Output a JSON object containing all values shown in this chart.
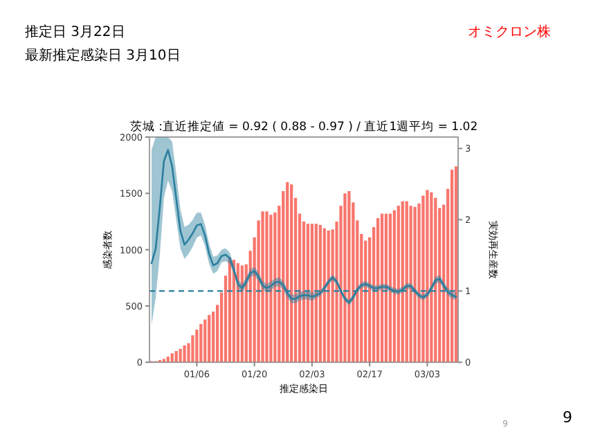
{
  "chart_data": {
    "type": "bar",
    "title": "茨城 :直近推定値 = 0.92 ( 0.88 - 0.97 ) / 直近1週平均 = 1.02",
    "xlabel": "推定感染日",
    "ylabel": "感染者数",
    "y2label": "実効再生産数",
    "categories": [
      null,
      null,
      null,
      null,
      null,
      null,
      null,
      null,
      null,
      null,
      null,
      "01/06",
      null,
      null,
      null,
      null,
      null,
      null,
      null,
      null,
      null,
      null,
      null,
      null,
      null,
      "01/20",
      null,
      null,
      null,
      null,
      null,
      null,
      null,
      null,
      null,
      null,
      null,
      null,
      null,
      "02/03",
      null,
      null,
      null,
      null,
      null,
      null,
      null,
      null,
      null,
      null,
      null,
      null,
      null,
      "02/17",
      null,
      null,
      null,
      null,
      null,
      null,
      null,
      null,
      null,
      null,
      null,
      null,
      null,
      "03/03",
      null,
      null,
      null,
      null,
      null,
      null,
      null
    ],
    "series": [
      {
        "color": "#f8766d",
        "values": [
          10,
          10,
          20,
          30,
          50,
          80,
          100,
          120,
          150,
          170,
          240,
          290,
          340,
          380,
          420,
          450,
          510,
          620,
          770,
          930,
          910,
          880,
          860,
          870,
          990,
          1110,
          1260,
          1340,
          1340,
          1310,
          1330,
          1390,
          1520,
          1600,
          1580,
          1460,
          1320,
          1250,
          1230,
          1230,
          1230,
          1220,
          1190,
          1170,
          1180,
          1250,
          1390,
          1500,
          1520,
          1420,
          1260,
          1140,
          1080,
          1110,
          1200,
          1280,
          1320,
          1320,
          1320,
          1350,
          1390,
          1430,
          1430,
          1390,
          1380,
          1410,
          1480,
          1530,
          1510,
          1460,
          1370,
          1400,
          1540,
          1710,
          1740
        ]
      },
      {
        "type": "line",
        "axis": "y2",
        "color": "#2a7f9e",
        "values": [
          1.39,
          1.59,
          2.17,
          2.82,
          2.98,
          2.75,
          2.3,
          1.85,
          1.65,
          1.72,
          1.81,
          1.92,
          1.94,
          1.78,
          1.52,
          1.36,
          1.39,
          1.49,
          1.51,
          1.46,
          1.3,
          1.1,
          1.04,
          1.13,
          1.25,
          1.28,
          1.2,
          1.08,
          1.04,
          1.07,
          1.12,
          1.13,
          1.08,
          0.97,
          0.89,
          0.89,
          0.93,
          0.94,
          0.94,
          0.92,
          0.94,
          0.97,
          1.04,
          1.13,
          1.19,
          1.13,
          1.0,
          0.89,
          0.84,
          0.91,
          1.02,
          1.08,
          1.1,
          1.07,
          1.04,
          1.04,
          1.06,
          1.06,
          1.03,
          1.0,
          0.99,
          1.02,
          1.07,
          1.07,
          1.0,
          0.94,
          0.91,
          0.95,
          1.04,
          1.15,
          1.17,
          1.08,
          0.99,
          0.94,
          0.92
        ],
        "lower": [
          0.52,
          0.9,
          1.5,
          2.3,
          2.55,
          2.4,
          2.0,
          1.6,
          1.45,
          1.52,
          1.62,
          1.75,
          1.78,
          1.63,
          1.38,
          1.24,
          1.28,
          1.4,
          1.42,
          1.38,
          1.24,
          1.04,
          0.98,
          1.07,
          1.19,
          1.22,
          1.14,
          1.02,
          0.98,
          1.01,
          1.06,
          1.07,
          1.02,
          0.91,
          0.83,
          0.83,
          0.87,
          0.88,
          0.88,
          0.86,
          0.9,
          0.93,
          1.0,
          1.09,
          1.15,
          1.09,
          0.96,
          0.85,
          0.8,
          0.87,
          0.98,
          1.04,
          1.06,
          1.03,
          1.0,
          1.0,
          1.02,
          1.02,
          0.99,
          0.96,
          0.95,
          0.98,
          1.03,
          1.03,
          0.96,
          0.9,
          0.87,
          0.91,
          1.0,
          1.1,
          1.12,
          1.03,
          0.94,
          0.89,
          0.88
        ],
        "upper": [
          2.98,
          3.16,
          3.16,
          3.16,
          3.16,
          3.1,
          2.65,
          2.15,
          1.9,
          1.93,
          2.0,
          2.1,
          2.1,
          1.93,
          1.66,
          1.48,
          1.5,
          1.58,
          1.6,
          1.54,
          1.36,
          1.16,
          1.1,
          1.19,
          1.31,
          1.34,
          1.26,
          1.14,
          1.1,
          1.13,
          1.18,
          1.19,
          1.14,
          1.03,
          0.95,
          0.95,
          0.99,
          1.0,
          1.0,
          0.98,
          0.98,
          1.01,
          1.08,
          1.17,
          1.23,
          1.17,
          1.04,
          0.93,
          0.88,
          0.95,
          1.06,
          1.12,
          1.14,
          1.11,
          1.08,
          1.08,
          1.1,
          1.1,
          1.07,
          1.04,
          1.03,
          1.06,
          1.11,
          1.11,
          1.04,
          0.98,
          0.95,
          0.99,
          1.08,
          1.2,
          1.22,
          1.13,
          1.04,
          0.99,
          0.97
        ]
      }
    ],
    "ylim": [
      0,
      2000
    ],
    "yticks": [
      0,
      500,
      1000,
      1500,
      2000
    ],
    "y2lim": [
      0,
      3.16
    ],
    "y2ticks": [
      0,
      1,
      2,
      3
    ],
    "ref_lines": [
      {
        "axis": "y2",
        "value": 1,
        "line_style": "dashed",
        "color": "#2a7f9e"
      }
    ],
    "annotations": [
      "推定日 3月22日",
      "最新推定感染日 3月10日",
      "オミクロン株",
      "9",
      "9"
    ]
  }
}
